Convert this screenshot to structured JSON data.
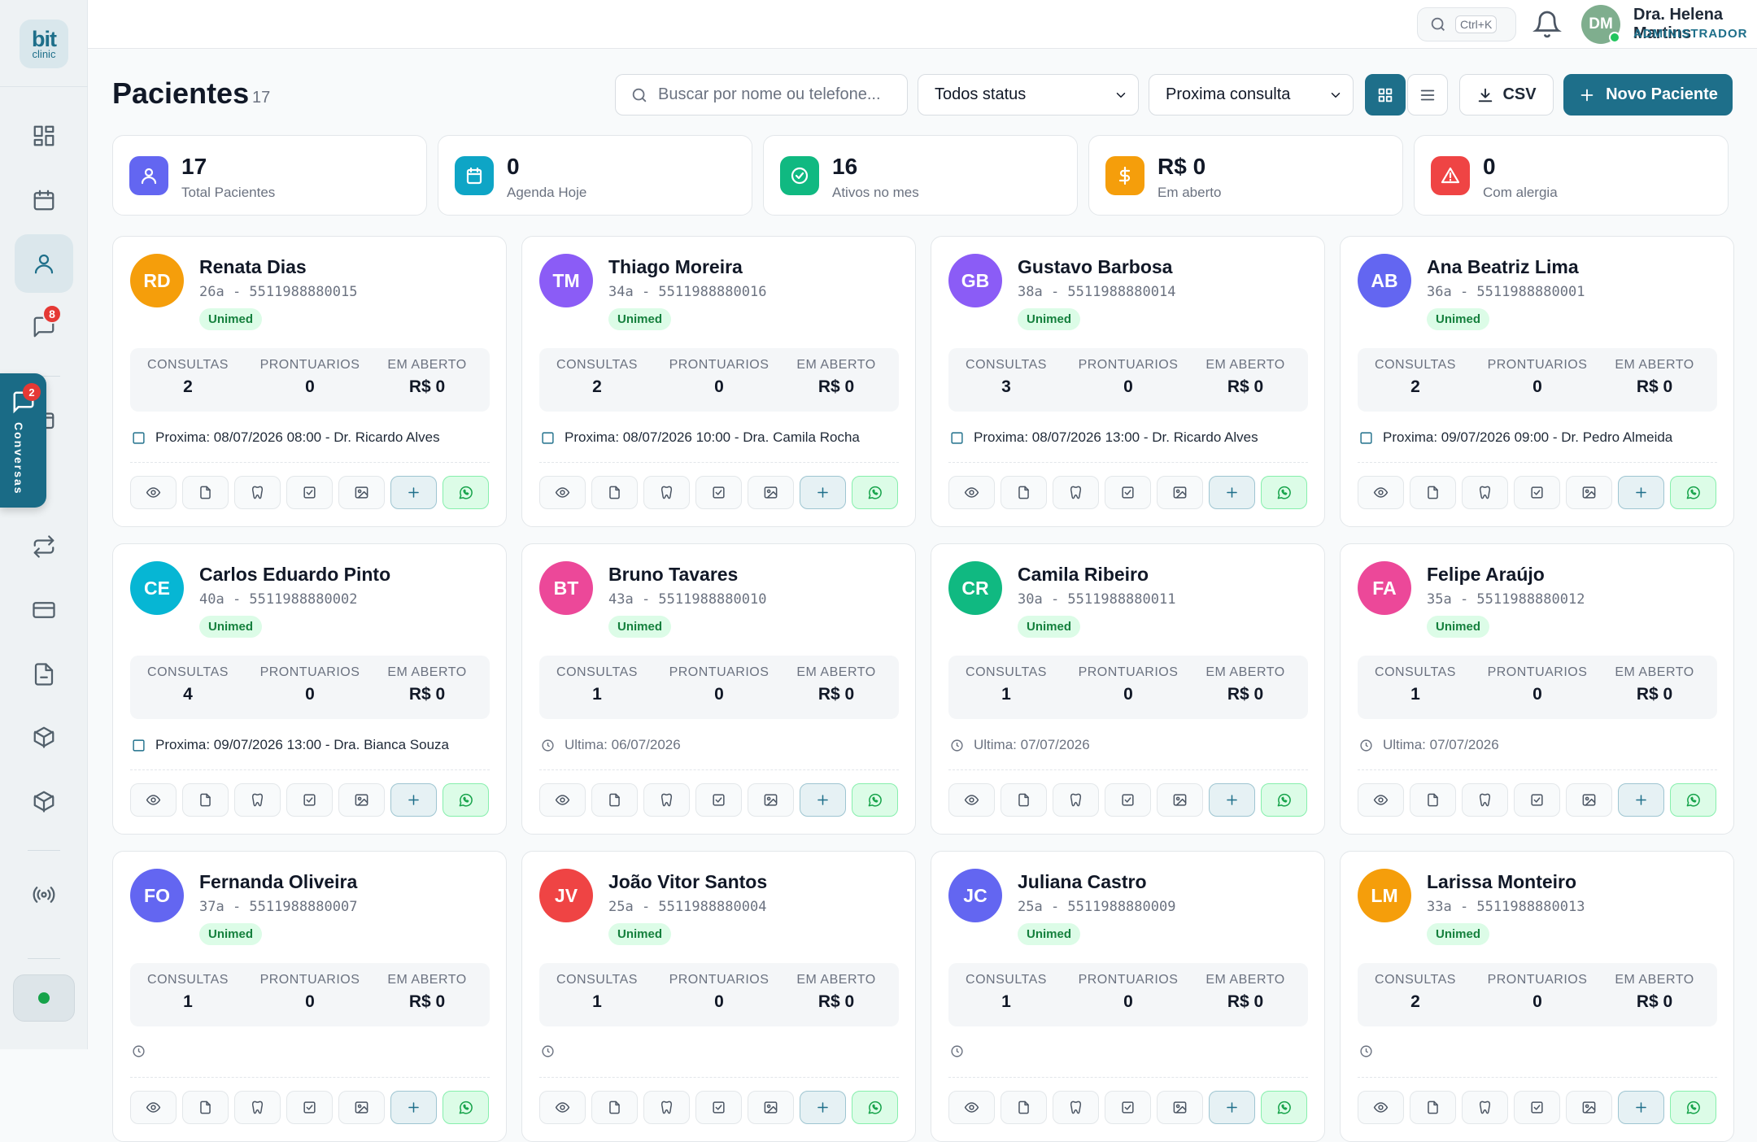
{
  "app": {
    "logo_top": "bit",
    "logo_bottom": "clinic"
  },
  "sidebar": {
    "chat_badge": "8",
    "conversas_label": "Conversas",
    "conversas_badge": "2"
  },
  "topbar": {
    "shortcut": "Ctrl+K",
    "user_initials": "DM",
    "user_name": "Dra. Helena Martins",
    "user_role": "ADMINISTRADOR"
  },
  "page": {
    "title": "Pacientes",
    "count": "17",
    "search_placeholder": "Buscar por nome ou telefone...",
    "status_filter": "Todos status",
    "sort_filter": "Proxima consulta",
    "csv_label": "CSV",
    "new_label": "Novo Paciente"
  },
  "stats": [
    {
      "value": "17",
      "label": "Total Pacientes",
      "color": "#6366f1",
      "icon": "user-icon"
    },
    {
      "value": "0",
      "label": "Agenda Hoje",
      "color": "#0ea5c6",
      "icon": "calendar-icon"
    },
    {
      "value": "16",
      "label": "Ativos no mes",
      "color": "#10b981",
      "icon": "check-circle-icon"
    },
    {
      "value": "R$ 0",
      "label": "Em aberto",
      "color": "#f59e0b",
      "icon": "dollar-icon"
    },
    {
      "value": "0",
      "label": "Com alergia",
      "color": "#ef4444",
      "icon": "alert-icon"
    }
  ],
  "stat_labels": {
    "consultas": "CONSULTAS",
    "prontuarios": "PRONTUARIOS",
    "em_aberto": "EM ABERTO"
  },
  "patients": [
    {
      "initials": "RD",
      "color": "#f59e0b",
      "name": "Renata Dias",
      "meta": "26a - 5511988880015",
      "plan": "Unimed",
      "consultas": "2",
      "prontuarios": "0",
      "em_aberto": "R$ 0",
      "next": "Proxima: 08/07/2026 08:00 - Dr. Ricardo Alves",
      "next_type": "next"
    },
    {
      "initials": "TM",
      "color": "#8b5cf6",
      "name": "Thiago Moreira",
      "meta": "34a - 5511988880016",
      "plan": "Unimed",
      "consultas": "2",
      "prontuarios": "0",
      "em_aberto": "R$ 0",
      "next": "Proxima: 08/07/2026 10:00 - Dra. Camila Rocha",
      "next_type": "next"
    },
    {
      "initials": "GB",
      "color": "#8b5cf6",
      "name": "Gustavo Barbosa",
      "meta": "38a - 5511988880014",
      "plan": "Unimed",
      "consultas": "3",
      "prontuarios": "0",
      "em_aberto": "R$ 0",
      "next": "Proxima: 08/07/2026 13:00 - Dr. Ricardo Alves",
      "next_type": "next"
    },
    {
      "initials": "AB",
      "color": "#6366f1",
      "name": "Ana Beatriz Lima",
      "meta": "36a - 5511988880001",
      "plan": "Unimed",
      "consultas": "2",
      "prontuarios": "0",
      "em_aberto": "R$ 0",
      "next": "Proxima: 09/07/2026 09:00 - Dr. Pedro Almeida",
      "next_type": "next"
    },
    {
      "initials": "CE",
      "color": "#06b6d4",
      "name": "Carlos Eduardo Pinto",
      "meta": "40a - 5511988880002",
      "plan": "Unimed",
      "consultas": "4",
      "prontuarios": "0",
      "em_aberto": "R$ 0",
      "next": "Proxima: 09/07/2026 13:00 - Dra. Bianca Souza",
      "next_type": "next"
    },
    {
      "initials": "BT",
      "color": "#ec4899",
      "name": "Bruno Tavares",
      "meta": "43a - 5511988880010",
      "plan": "Unimed",
      "consultas": "1",
      "prontuarios": "0",
      "em_aberto": "R$ 0",
      "next": "Ultima: 06/07/2026",
      "next_type": "last"
    },
    {
      "initials": "CR",
      "color": "#10b981",
      "name": "Camila Ribeiro",
      "meta": "30a - 5511988880011",
      "plan": "Unimed",
      "consultas": "1",
      "prontuarios": "0",
      "em_aberto": "R$ 0",
      "next": "Ultima: 07/07/2026",
      "next_type": "last"
    },
    {
      "initials": "FA",
      "color": "#ec4899",
      "name": "Felipe Araújo",
      "meta": "35a - 5511988880012",
      "plan": "Unimed",
      "consultas": "1",
      "prontuarios": "0",
      "em_aberto": "R$ 0",
      "next": "Ultima: 07/07/2026",
      "next_type": "last"
    },
    {
      "initials": "FO",
      "color": "#6366f1",
      "name": "Fernanda Oliveira",
      "meta": "37a - 5511988880007",
      "plan": "Unimed",
      "consultas": "1",
      "prontuarios": "0",
      "em_aberto": "R$ 0",
      "next": "",
      "next_type": "last"
    },
    {
      "initials": "JV",
      "color": "#ef4444",
      "name": "João Vitor Santos",
      "meta": "25a - 5511988880004",
      "plan": "Unimed",
      "consultas": "1",
      "prontuarios": "0",
      "em_aberto": "R$ 0",
      "next": "",
      "next_type": "last"
    },
    {
      "initials": "JC",
      "color": "#6366f1",
      "name": "Juliana Castro",
      "meta": "25a - 5511988880009",
      "plan": "Unimed",
      "consultas": "1",
      "prontuarios": "0",
      "em_aberto": "R$ 0",
      "next": "",
      "next_type": "last"
    },
    {
      "initials": "LM",
      "color": "#f59e0b",
      "name": "Larissa Monteiro",
      "meta": "33a - 5511988880013",
      "plan": "Unimed",
      "consultas": "2",
      "prontuarios": "0",
      "em_aberto": "R$ 0",
      "next": "",
      "next_type": "last"
    }
  ]
}
